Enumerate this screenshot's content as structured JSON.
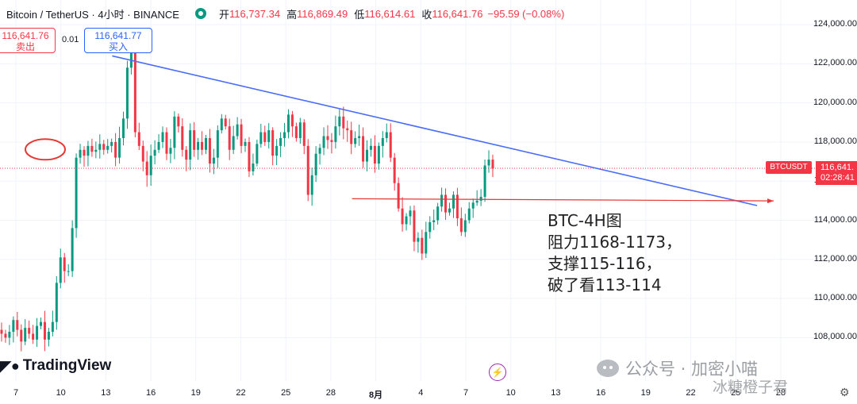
{
  "header": {
    "symbol": "Bitcoin / TetherUS · 4小时 · BINANCE",
    "open_label": "开",
    "open": "116,737.34",
    "high_label": "高",
    "high": "116,869.49",
    "low_label": "低",
    "low": "116,614.61",
    "close_label": "收",
    "close": "116,641.76",
    "change": "−95.59 (−0.08%)"
  },
  "trade": {
    "sell_price": "116,641.76",
    "sell_label": "卖出",
    "spread": "0.01",
    "buy_price": "116,641.77",
    "buy_label": "买入"
  },
  "price_tag": {
    "symbol": "BTCUSDT",
    "price": "116,641.",
    "countdown": "02:28:41"
  },
  "annotation": {
    "line1": "BTC-4H图",
    "line2": "阻力1168-1173，",
    "line3": "支撑115-116，",
    "line4": "破了看113-114"
  },
  "logo": {
    "text": "TradingView"
  },
  "watermark": {
    "line1": "公众号 · 加密小喵",
    "line2": "冰糖橙子君"
  },
  "icons": {
    "bolt": "lightning-icon",
    "settings": "gear-icon"
  },
  "colors": {
    "up": "#089981",
    "down": "#f23645",
    "trendline": "#4a6cf7",
    "support": "#e53935"
  },
  "chart_data": {
    "type": "candlestick",
    "title": "",
    "ylim": [
      106500,
      124700
    ],
    "y_ticks": [
      "124,000.00",
      "122,000.00",
      "120,000.00",
      "118,000.00",
      "116,000.00",
      "114,000.00",
      "112,000.00",
      "110,000.00",
      "108,000.00"
    ],
    "x_ticks": [
      "7",
      "10",
      "13",
      "16",
      "19",
      "22",
      "25",
      "28",
      "8月",
      "4",
      "7",
      "10",
      "13",
      "16",
      "19",
      "22",
      "25",
      "28"
    ],
    "close_series_4h": [
      108200,
      108000,
      108300,
      108900,
      108400,
      107800,
      108500,
      108200,
      107900,
      108600,
      108800,
      107900,
      108300,
      108800,
      110800,
      112100,
      111400,
      111400,
      113600,
      117200,
      117600,
      117300,
      117800,
      117500,
      117600,
      117900,
      117600,
      117800,
      118000,
      117200,
      118200,
      119200,
      121800,
      122700,
      118500,
      117800,
      117000,
      116300,
      117300,
      117600,
      118000,
      118500,
      117400,
      117700,
      119300,
      118800,
      117600,
      117100,
      118600,
      117600,
      118000,
      117600,
      118200,
      116900,
      117200,
      118600,
      119200,
      118800,
      117600,
      118300,
      118900,
      117800,
      118000,
      116500,
      116900,
      117900,
      118500,
      118000,
      118600,
      117300,
      117800,
      118200,
      118500,
      119400,
      118800,
      118200,
      119000,
      117800,
      115300,
      116300,
      117400,
      117700,
      118300,
      118100,
      118000,
      118800,
      119300,
      118700,
      118600,
      117900,
      118200,
      118300,
      117000,
      117600,
      117800,
      116900,
      117800,
      118200,
      118500,
      117200,
      115900,
      114600,
      113800,
      114200,
      114500,
      112900,
      113100,
      112300,
      113400,
      113900,
      114000,
      114700,
      115300,
      114400,
      114600,
      115300,
      114100,
      113400,
      114000,
      114600,
      114900,
      115000,
      115200,
      116800,
      117100,
      116642
    ],
    "trendline": {
      "from": [
        "13",
        122400
      ],
      "to": [
        "26",
        114750
      ]
    },
    "support_line": {
      "from": [
        "8月",
        115100
      ],
      "to": [
        "27",
        114990
      ]
    },
    "resistance_marker": {
      "at": [
        "8",
        117700
      ]
    }
  }
}
